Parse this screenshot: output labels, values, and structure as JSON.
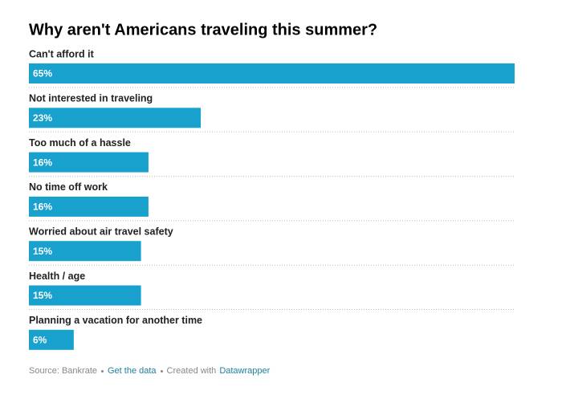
{
  "chart_data": {
    "type": "bar",
    "title": "Why aren't Americans traveling this summer?",
    "categories": [
      "Can't afford it",
      "Not interested in traveling",
      "Too much of a hassle",
      "No time off work",
      "Worried about air travel safety",
      "Health / age",
      "Planning a vacation for another time"
    ],
    "values": [
      65,
      23,
      16,
      16,
      15,
      15,
      6
    ],
    "value_labels": [
      "65%",
      "23%",
      "16%",
      "16%",
      "15%",
      "15%",
      "6%"
    ],
    "color": "#18a1cd"
  },
  "footer": {
    "source": "Source: Bankrate",
    "data_link": "Get the data",
    "created": "Created with",
    "tool_link": "Datawrapper"
  }
}
